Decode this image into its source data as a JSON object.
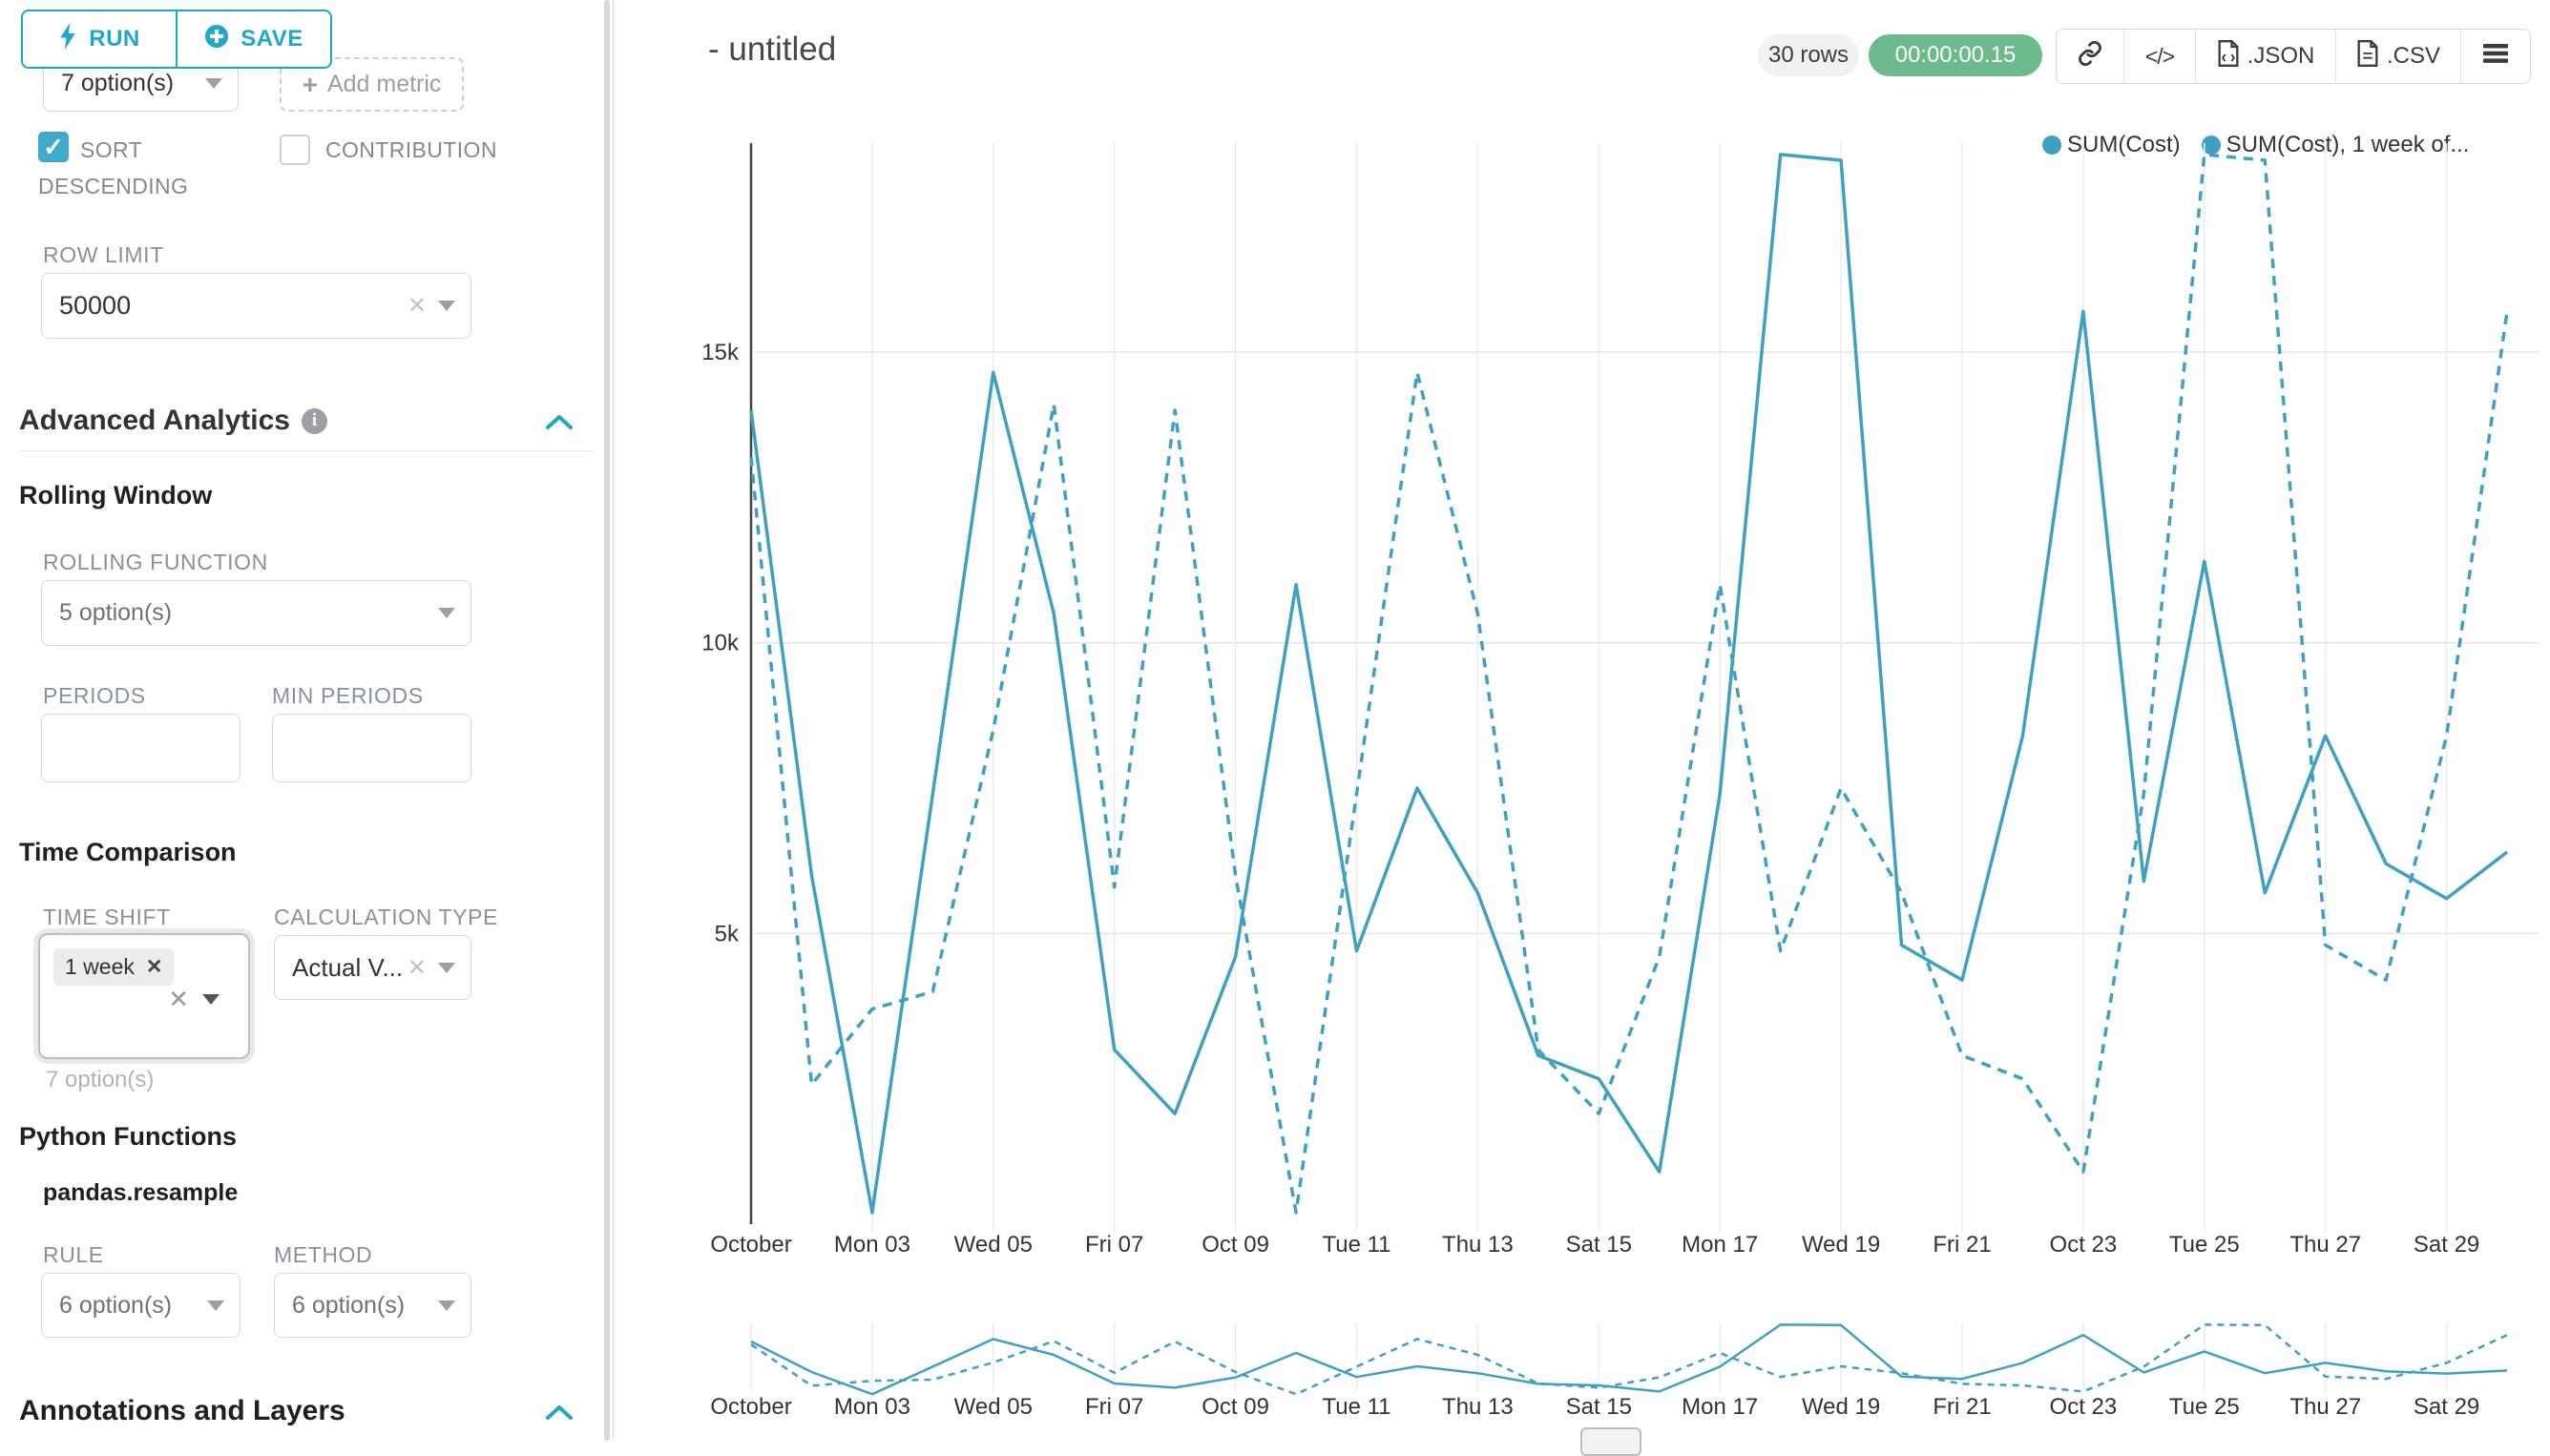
{
  "app": {
    "accent_color": "#1FA8C9",
    "series_color": "#3FA1C1",
    "timer_color": "#6CBA8D"
  },
  "sidebar": {
    "run_button": {
      "label": "RUN"
    },
    "save_button": {
      "label": "SAVE"
    },
    "metrics_select": {
      "value": "7 option(s)"
    },
    "add_metric_button": {
      "label": "Add metric"
    },
    "sort_descending": {
      "label_line1": "SORT",
      "label_line2": "DESCENDING",
      "checked": true,
      "checkmark": "✓"
    },
    "contribution": {
      "label": "CONTRIBUTION",
      "checked": false
    },
    "row_limit": {
      "label": "ROW LIMIT",
      "value": "50000"
    },
    "advanced_analytics": {
      "title": "Advanced Analytics",
      "info_icon": "i"
    },
    "rolling_window": {
      "title": "Rolling Window",
      "rolling_function_label": "ROLLING FUNCTION",
      "rolling_function_value": "5 option(s)",
      "periods_label": "PERIODS",
      "min_periods_label": "MIN PERIODS"
    },
    "time_comparison": {
      "title": "Time Comparison",
      "time_shift_label": "TIME SHIFT",
      "time_shift_tag": "1 week",
      "time_shift_helper": "7 option(s)",
      "calculation_type_label": "CALCULATION TYPE",
      "calculation_type_value": "Actual V..."
    },
    "python_functions": {
      "title": "Python Functions",
      "subtitle": "pandas.resample",
      "rule_label": "RULE",
      "rule_value": "6 option(s)",
      "method_label": "METHOD",
      "method_value": "6 option(s)"
    },
    "annotations": {
      "title": "Annotations and Layers"
    }
  },
  "header": {
    "title": "- untitled",
    "rows_badge": "30 rows",
    "timer": "00:00:00.15",
    "code_glyph": "</>",
    "export_json": ".JSON",
    "export_csv": ".CSV"
  },
  "chart_data": {
    "type": "line",
    "title": "",
    "xlabel": "",
    "ylabel": "",
    "grid": true,
    "legend_position": "top-right",
    "ylim": [
      0,
      18600
    ],
    "y_ticks": [
      {
        "value": 5000,
        "label": "5k"
      },
      {
        "value": 10000,
        "label": "10k"
      },
      {
        "value": 15000,
        "label": "15k"
      }
    ],
    "x_tick_labels": [
      "October",
      "Mon 03",
      "Wed 05",
      "Fri 07",
      "Oct 09",
      "Tue 11",
      "Thu 13",
      "Sat 15",
      "Mon 17",
      "Wed 19",
      "Fri 21",
      "Oct 23",
      "Tue 25",
      "Thu 27",
      "Sat 29"
    ],
    "categories": [
      "Oct 01",
      "Oct 02",
      "Oct 03",
      "Oct 04",
      "Oct 05",
      "Oct 06",
      "Oct 07",
      "Oct 08",
      "Oct 09",
      "Oct 10",
      "Oct 11",
      "Oct 12",
      "Oct 13",
      "Oct 14",
      "Oct 15",
      "Oct 16",
      "Oct 17",
      "Oct 18",
      "Oct 19",
      "Oct 20",
      "Oct 21",
      "Oct 22",
      "Oct 23",
      "Oct 24",
      "Oct 25",
      "Oct 26",
      "Oct 27",
      "Oct 28",
      "Oct 29",
      "Oct 30"
    ],
    "series": [
      {
        "name": "SUM(Cost)",
        "legend_label": "SUM(Cost)",
        "line_style": "solid",
        "color": "#3FA1C1",
        "values": [
          14000,
          6000,
          200,
          7400,
          14650,
          10500,
          3000,
          1900,
          4600,
          11000,
          4700,
          7500,
          5700,
          2900,
          2500,
          900,
          7400,
          18400,
          18300,
          4800,
          4200,
          8400,
          15700,
          5900,
          11400,
          5700,
          8400,
          6200,
          5600,
          6400
        ]
      },
      {
        "name": "SUM(Cost), 1 week offset",
        "legend_label": "SUM(Cost), 1 week of...",
        "line_style": "dashed",
        "color": "#3FA1C1",
        "values": [
          13200,
          2400,
          3700,
          4000,
          8500,
          14100,
          5800,
          14000,
          6000,
          200,
          7400,
          14650,
          10500,
          3000,
          1900,
          4600,
          11000,
          4700,
          7500,
          5700,
          2900,
          2500,
          900,
          7400,
          18400,
          18300,
          4800,
          4200,
          8400,
          15700
        ]
      }
    ]
  }
}
